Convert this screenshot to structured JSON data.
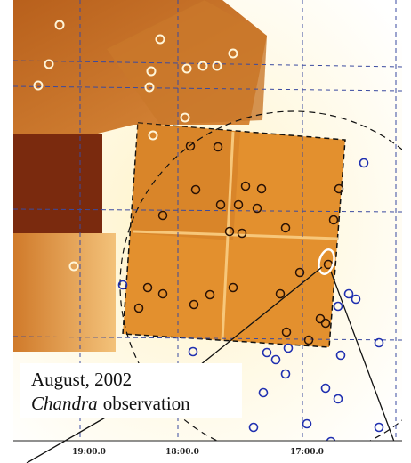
{
  "annotation": {
    "date": "August, 2002",
    "instrument": "Chandra",
    "caption": "observation"
  },
  "axis_labels": [
    "19:00.0",
    "18:00.0",
    "17:00.0"
  ]
}
